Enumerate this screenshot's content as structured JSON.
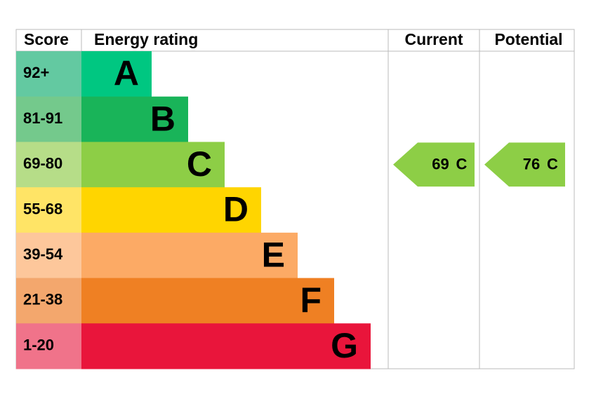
{
  "headers": [
    "Score",
    "Energy rating",
    "Current",
    "Potential"
  ],
  "bands": [
    {
      "score": "92+",
      "letter": "A",
      "color": "#00c781",
      "score_color": "#63c9a1"
    },
    {
      "score": "81-91",
      "letter": "B",
      "color": "#19b459",
      "score_color": "#74c98c"
    },
    {
      "score": "69-80",
      "letter": "C",
      "color": "#8dce46",
      "score_color": "#b6dd88"
    },
    {
      "score": "55-68",
      "letter": "D",
      "color": "#ffd500",
      "score_color": "#ffe466"
    },
    {
      "score": "39-54",
      "letter": "E",
      "color": "#fcaa65",
      "score_color": "#fdc79b"
    },
    {
      "score": "21-38",
      "letter": "F",
      "color": "#ef8023",
      "score_color": "#f3a76d"
    },
    {
      "score": "1-20",
      "letter": "G",
      "color": "#e9153b",
      "score_color": "#f0738a"
    }
  ],
  "current": {
    "value": 69,
    "letter": "C"
  },
  "potential": {
    "value": 76,
    "letter": "C"
  }
}
